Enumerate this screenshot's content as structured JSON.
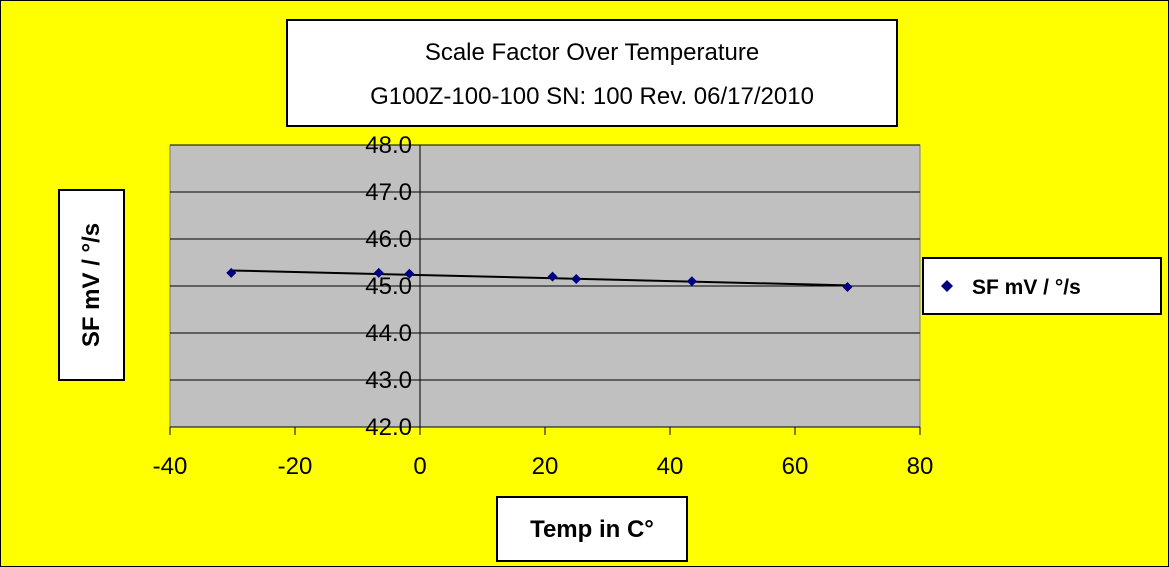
{
  "chart_data": {
    "type": "scatter",
    "title_lines": [
      "Scale Factor Over Temperature",
      "G100Z-100-100 SN: 100 Rev. 06/17/2010"
    ],
    "xlabel": "Temp in C°",
    "ylabel": "SF mV / °/s",
    "xlim": [
      -40,
      80
    ],
    "ylim": [
      42.0,
      48.0
    ],
    "x_ticks": [
      "-40",
      "-20",
      "0",
      "20",
      "40",
      "60",
      "80"
    ],
    "y_ticks": [
      "42.0",
      "43.0",
      "44.0",
      "45.0",
      "46.0",
      "47.0",
      "48.0"
    ],
    "grid": "horizontal",
    "legend_position": "right",
    "series": [
      {
        "name": "SF mV / °/s",
        "color": "#000080",
        "marker": "diamond",
        "x": [
          -30.2,
          -6.6,
          -1.7,
          21.2,
          25.0,
          43.5,
          68.4
        ],
        "y": [
          45.28,
          45.28,
          45.26,
          45.2,
          45.15,
          45.1,
          44.98
        ]
      }
    ],
    "trendline": {
      "type": "linear",
      "color": "#000000"
    },
    "colors": {
      "background": "#FFFF00",
      "plot_area": "#C0C0C0",
      "frame": "#000000",
      "label_box": "#FFFFFF"
    }
  }
}
